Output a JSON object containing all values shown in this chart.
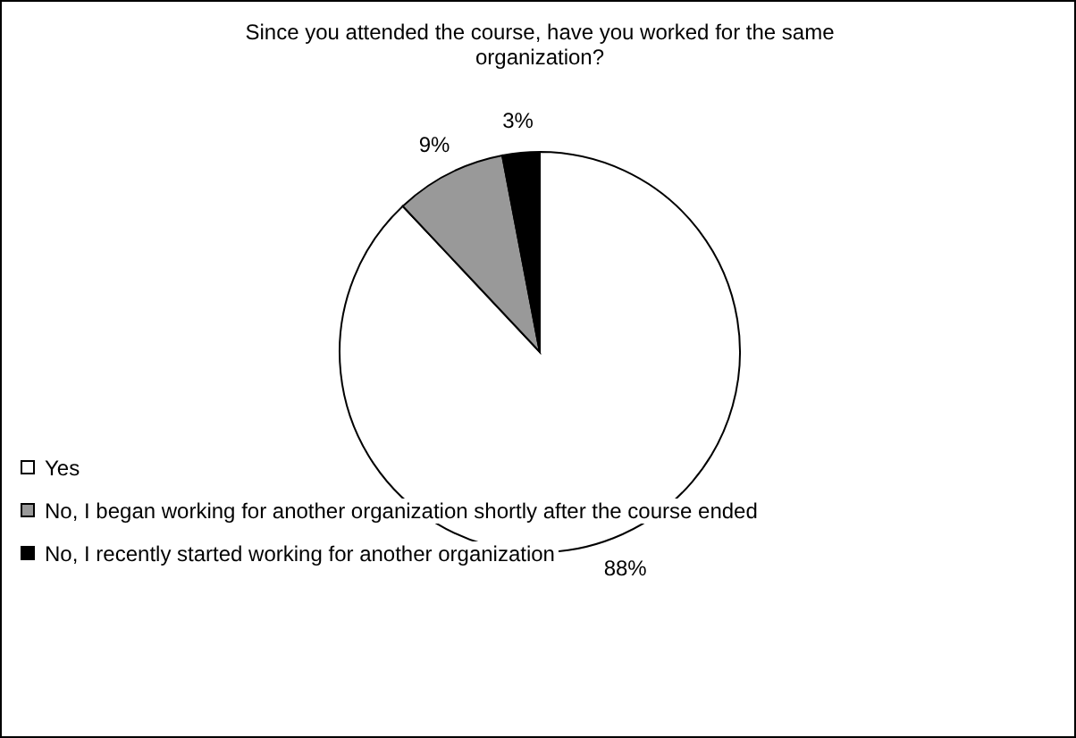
{
  "chart_data": {
    "type": "pie",
    "title": "Since you attended the course, have you worked for the same organization?",
    "categories": [
      "Yes",
      "No, I began working for another organization shortly after the course ended",
      "No, I recently started working for another organization"
    ],
    "values": [
      88,
      9,
      3
    ],
    "colors": [
      "#ffffff",
      "#999999",
      "#000000"
    ],
    "value_labels": [
      "88%",
      "9%",
      "3%"
    ],
    "legend": "bottom"
  }
}
